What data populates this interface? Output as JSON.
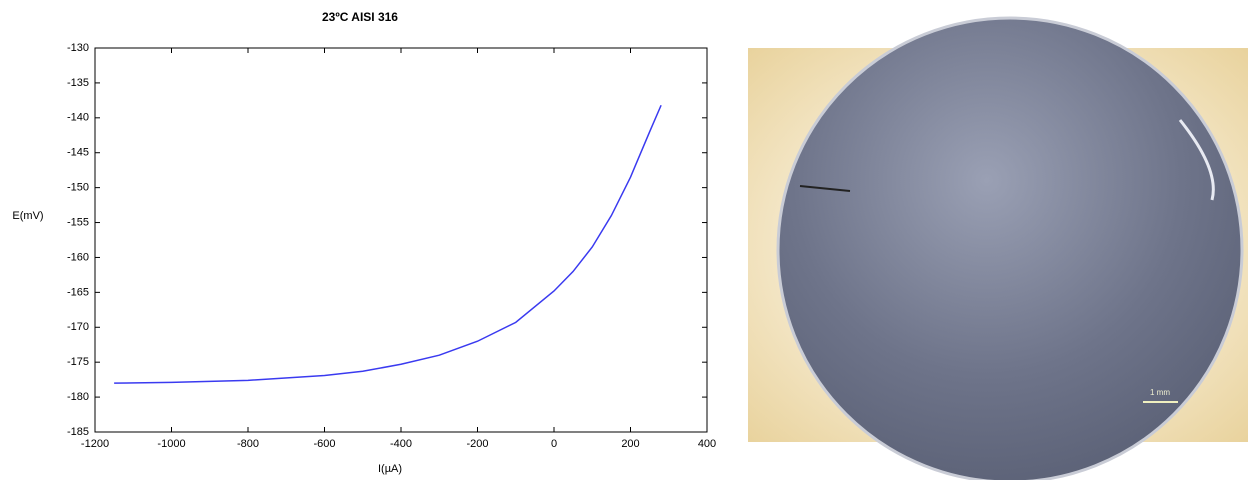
{
  "chart_data": {
    "type": "line",
    "title": "23ºC AISI 316",
    "x_label": "I(µA)",
    "y_label": "E(mV)",
    "x": [
      -1150,
      -1000,
      -800,
      -600,
      -500,
      -400,
      -300,
      -200,
      -100,
      0,
      50,
      100,
      150,
      200,
      250,
      280
    ],
    "series": [
      {
        "name": "E",
        "color": "#3a3af0",
        "values": [
          -178,
          -177.9,
          -177.6,
          -176.9,
          -176.3,
          -175.3,
          -174,
          -172,
          -169.3,
          -164.8,
          -162,
          -158.5,
          -154,
          -148.5,
          -142,
          -138.2
        ]
      }
    ],
    "xlim": [
      -1200,
      400
    ],
    "xticks": [
      -1200,
      -1000,
      -800,
      -600,
      -400,
      -200,
      0,
      200,
      400
    ],
    "ylim": [
      -185,
      -130
    ],
    "yticks": [
      -185,
      -180,
      -175,
      -170,
      -165,
      -160,
      -155,
      -150,
      -145,
      -140,
      -135,
      -130
    ],
    "grid": false
  },
  "photo": {
    "scale_label": "1 mm"
  }
}
